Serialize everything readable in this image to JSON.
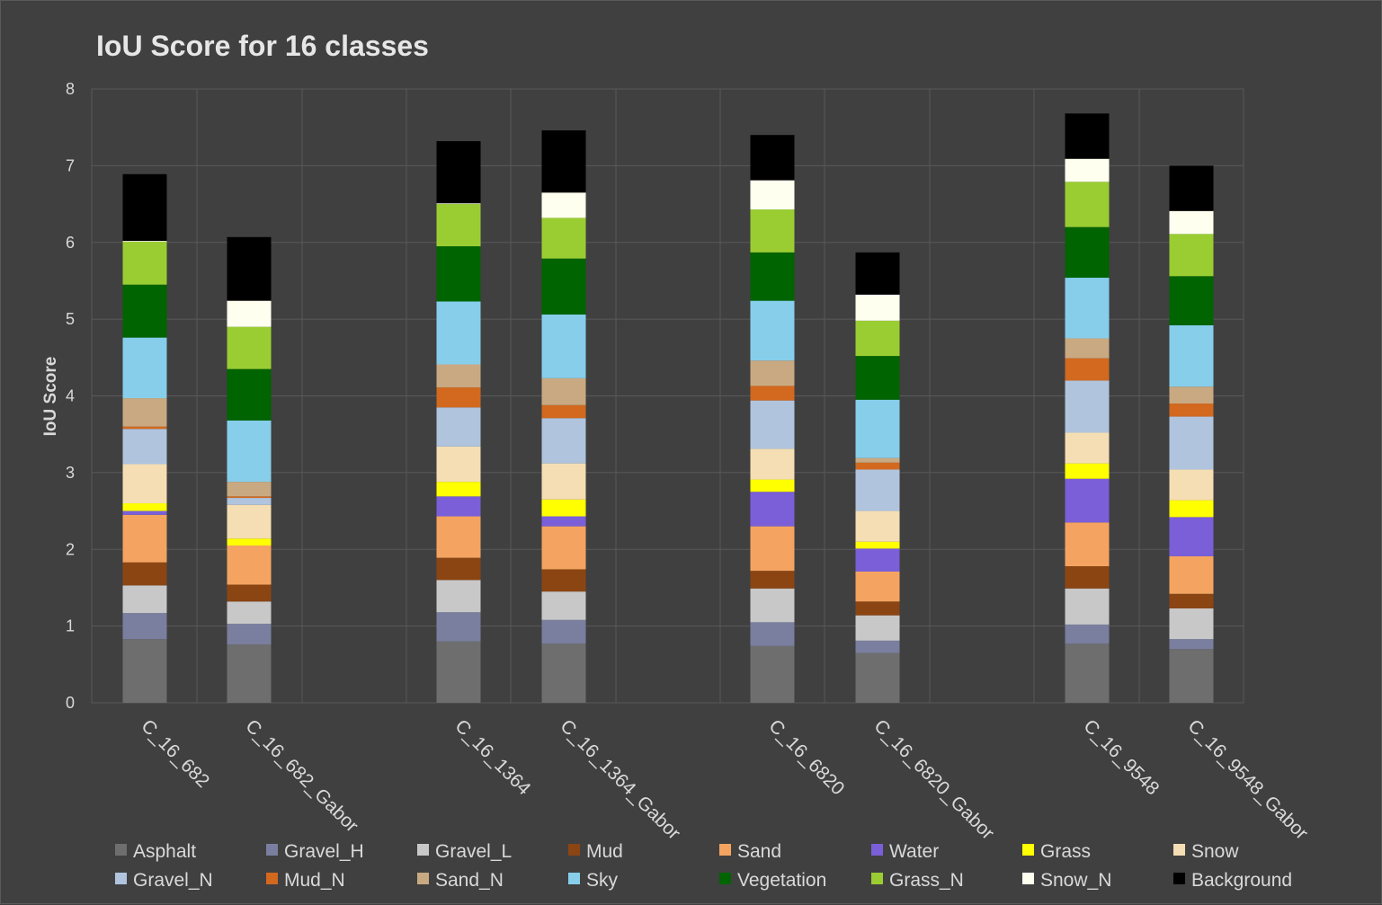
{
  "chart_data": {
    "type": "bar",
    "stacked": true,
    "title": "IoU Score for 16 classes",
    "xlabel": "",
    "ylabel": "IoU Score",
    "ylim": [
      0,
      8
    ],
    "yticks": [
      "0",
      "1",
      "2",
      "3",
      "4",
      "5",
      "6",
      "7",
      "8"
    ],
    "grid": true,
    "legend_position": "bottom",
    "groups": [
      [
        "C_16_682",
        "C_16_682_Gabor"
      ],
      [
        "C_16_1364",
        "C_16_1364_Gabor"
      ],
      [
        "C_16_6820",
        "C_16_6820_Gabor"
      ],
      [
        "C_16_9548",
        "C_16_9548_Gabor"
      ]
    ],
    "categories": [
      "C_16_682",
      "C_16_682_Gabor",
      "C_16_1364",
      "C_16_1364_Gabor",
      "C_16_6820",
      "C_16_6820_Gabor",
      "C_16_9548",
      "C_16_9548_Gabor"
    ],
    "series": [
      {
        "name": "Asphalt",
        "color": "#6e6e6e",
        "values": [
          0.83,
          0.76,
          0.8,
          0.77,
          0.74,
          0.65,
          0.77,
          0.7
        ]
      },
      {
        "name": "Gravel_H",
        "color": "#7a7fa0",
        "values": [
          0.34,
          0.27,
          0.38,
          0.31,
          0.31,
          0.16,
          0.25,
          0.13
        ]
      },
      {
        "name": "Gravel_L",
        "color": "#c8c8c8",
        "values": [
          0.36,
          0.29,
          0.42,
          0.37,
          0.44,
          0.33,
          0.47,
          0.4
        ]
      },
      {
        "name": "Mud",
        "color": "#8b4513",
        "values": [
          0.3,
          0.22,
          0.29,
          0.29,
          0.23,
          0.18,
          0.29,
          0.19
        ]
      },
      {
        "name": "Sand",
        "color": "#f4a460",
        "values": [
          0.62,
          0.51,
          0.54,
          0.56,
          0.58,
          0.39,
          0.57,
          0.49
        ]
      },
      {
        "name": "Water",
        "color": "#7a5fd9",
        "values": [
          0.05,
          0.0,
          0.26,
          0.13,
          0.45,
          0.3,
          0.57,
          0.51
        ]
      },
      {
        "name": "Grass",
        "color": "#ffff00",
        "values": [
          0.1,
          0.09,
          0.19,
          0.22,
          0.16,
          0.09,
          0.2,
          0.22
        ]
      },
      {
        "name": "Snow",
        "color": "#f5deb3",
        "values": [
          0.51,
          0.44,
          0.46,
          0.47,
          0.4,
          0.4,
          0.4,
          0.4
        ]
      },
      {
        "name": "Gravel_N",
        "color": "#b0c4de",
        "values": [
          0.46,
          0.09,
          0.51,
          0.59,
          0.63,
          0.54,
          0.68,
          0.69
        ]
      },
      {
        "name": "Mud_N",
        "color": "#d2691e",
        "values": [
          0.03,
          0.02,
          0.26,
          0.17,
          0.19,
          0.09,
          0.29,
          0.17
        ]
      },
      {
        "name": "Sand_N",
        "color": "#c9a982",
        "values": [
          0.37,
          0.19,
          0.3,
          0.35,
          0.33,
          0.06,
          0.26,
          0.22
        ]
      },
      {
        "name": "Sky",
        "color": "#87ceeb",
        "values": [
          0.79,
          0.8,
          0.82,
          0.83,
          0.78,
          0.76,
          0.79,
          0.8
        ]
      },
      {
        "name": "Vegetation",
        "color": "#006400",
        "values": [
          0.69,
          0.67,
          0.72,
          0.73,
          0.63,
          0.57,
          0.66,
          0.64
        ]
      },
      {
        "name": "Grass_N",
        "color": "#9acd32",
        "values": [
          0.56,
          0.55,
          0.55,
          0.53,
          0.56,
          0.46,
          0.59,
          0.55
        ]
      },
      {
        "name": "Snow_N",
        "color": "#fffff0",
        "values": [
          0.01,
          0.34,
          0.01,
          0.33,
          0.38,
          0.34,
          0.3,
          0.3
        ]
      },
      {
        "name": "Background",
        "color": "#000000",
        "values": [
          0.87,
          0.83,
          0.81,
          0.81,
          0.59,
          0.55,
          0.59,
          0.59
        ]
      }
    ]
  }
}
